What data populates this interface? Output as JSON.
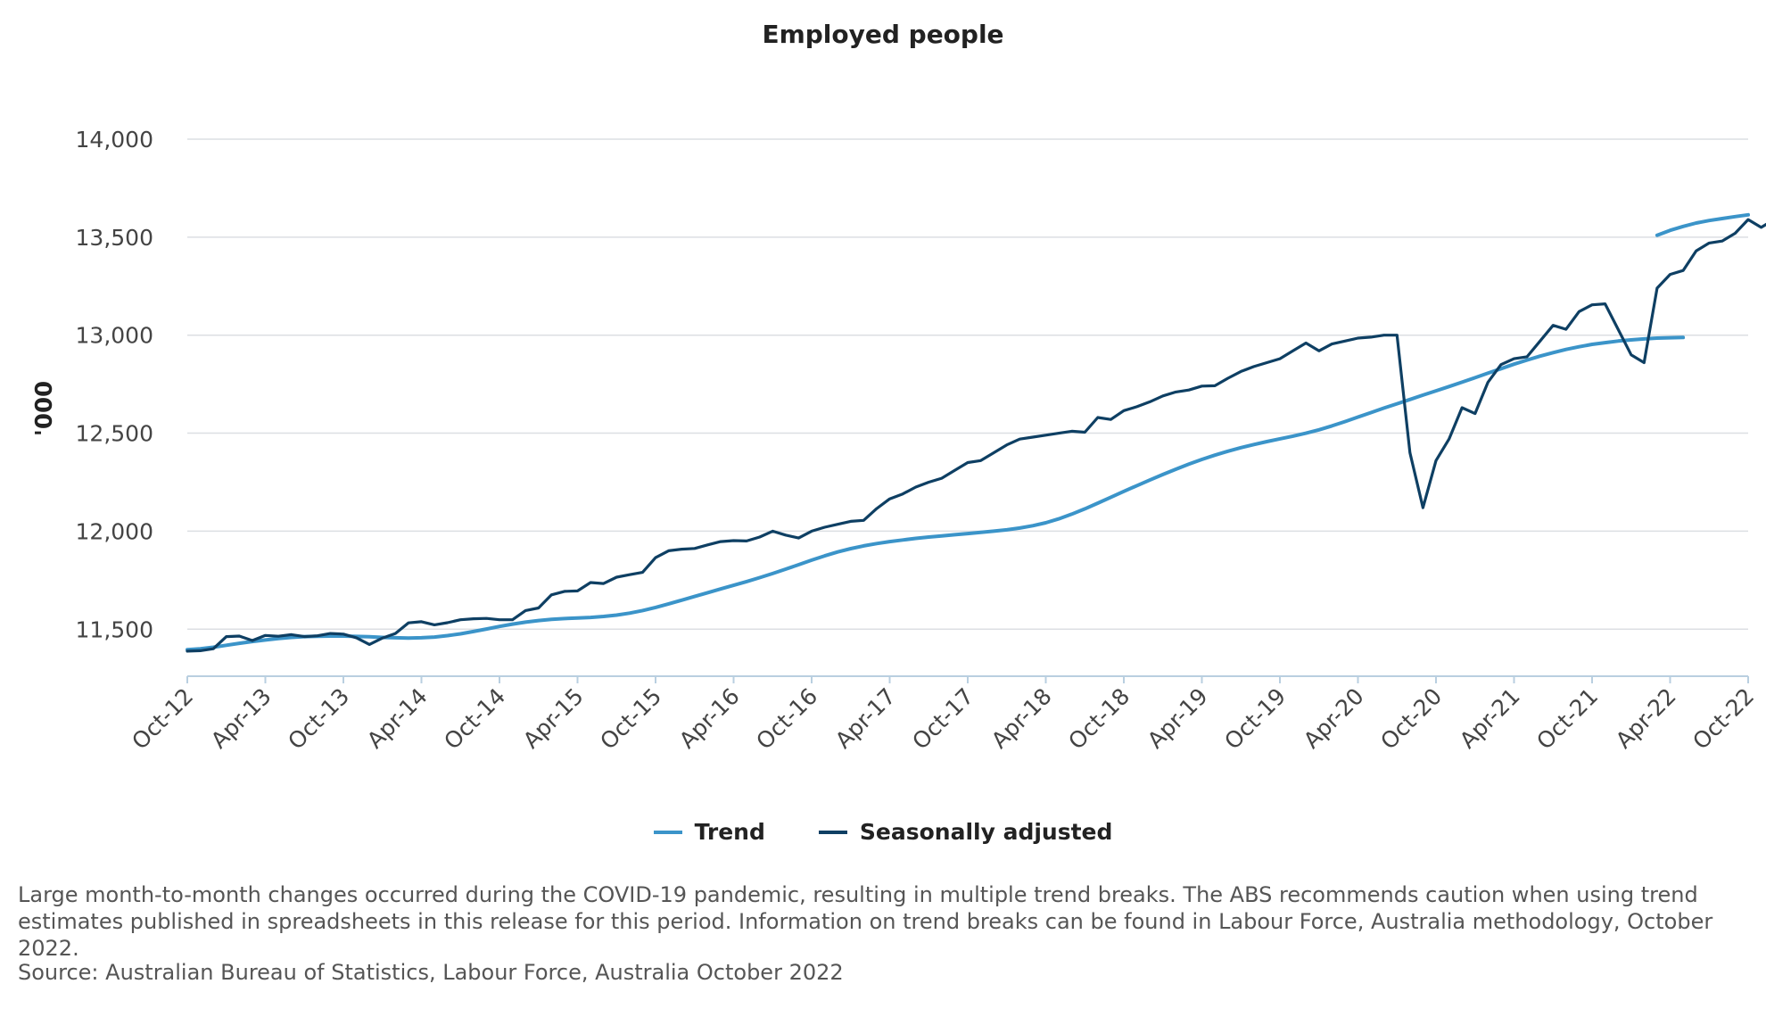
{
  "chart_data": {
    "type": "line",
    "title": "Employed people",
    "ylabel": "'000",
    "xlabel": "",
    "ylim": [
      11260,
      14000
    ],
    "yticks": [
      11500,
      12000,
      12500,
      13000,
      13500,
      14000
    ],
    "ytick_labels": [
      "11,500",
      "12,000",
      "12,500",
      "13,000",
      "13,500",
      "14,000"
    ],
    "x_start": "Oct-12",
    "x_end": "Oct-22",
    "xtick_labels": [
      "Oct-12",
      "Apr-13",
      "Oct-13",
      "Apr-14",
      "Oct-14",
      "Apr-15",
      "Oct-15",
      "Apr-16",
      "Oct-16",
      "Apr-17",
      "Oct-17",
      "Apr-18",
      "Oct-18",
      "Apr-19",
      "Oct-19",
      "Apr-20",
      "Oct-20",
      "Apr-21",
      "Oct-21",
      "Apr-22",
      "Oct-22"
    ],
    "grid": true,
    "legend_position": "bottom",
    "series": [
      {
        "name": "Trend",
        "color": "#3b94c9",
        "segments": [
          {
            "start": "Oct-12",
            "values": [
              11395,
              11400,
              11408,
              11418,
              11428,
              11437,
              11445,
              11452,
              11458,
              11462,
              11464,
              11465,
              11465,
              11463,
              11461,
              11458,
              11456,
              11455,
              11456,
              11460,
              11467,
              11476,
              11488,
              11501,
              11514,
              11526,
              11536,
              11544,
              11550,
              11554,
              11557,
              11560,
              11565,
              11572,
              11582,
              11595,
              11611,
              11629,
              11648,
              11667,
              11686,
              11705,
              11724,
              11743,
              11763,
              11784,
              11806,
              11829,
              11852,
              11874,
              11894,
              11911,
              11925,
              11937,
              11947,
              11955,
              11963,
              11970,
              11976,
              11982,
              11988,
              11994,
              12000,
              12007,
              12016,
              12028,
              12043,
              12063,
              12087,
              12114,
              12143,
              12173,
              12203,
              12232,
              12261,
              12289,
              12316,
              12342,
              12366,
              12388,
              12408,
              12426,
              12442,
              12457,
              12471,
              12485,
              12500,
              12517,
              12537,
              12559,
              12582,
              12605,
              12628,
              12650,
              12672,
              12694,
              12716,
              12738,
              12760,
              12783,
              12806,
              12829,
              12852,
              12873,
              12893,
              12911,
              12927,
              12941,
              12953,
              12962,
              12970,
              12976,
              12981,
              12985,
              12987,
              12988
            ]
          },
          {
            "start": "Mar-22",
            "values": [
              13510,
              13535,
              13555,
              13572,
              13585,
              13595,
              13605,
              13614
            ]
          }
        ]
      },
      {
        "name": "Seasonally adjusted",
        "color": "#0e3f63",
        "segments": [
          {
            "start": "Oct-12",
            "values": [
              11388,
              11390,
              11400,
              11462,
              11465,
              11442,
              11468,
              11464,
              11472,
              11462,
              11466,
              11478,
              11475,
              11456,
              11422,
              11455,
              11478,
              11532,
              11538,
              11522,
              11533,
              11548,
              11553,
              11555,
              11548,
              11548,
              11595,
              11608,
              11675,
              11693,
              11695,
              11738,
              11733,
              11765,
              11778,
              11790,
              11865,
              11900,
              11908,
              11912,
              11930,
              11947,
              11952,
              11950,
              11970,
              12000,
              11980,
              11965,
              12000,
              12020,
              12035,
              12050,
              12055,
              12115,
              12165,
              12190,
              12225,
              12250,
              12270,
              12310,
              12350,
              12360,
              12400,
              12440,
              12470,
              12480,
              12490,
              12500,
              12510,
              12505,
              12580,
              12570,
              12615,
              12635,
              12660,
              12690,
              12710,
              12720,
              12740,
              12742,
              12780,
              12815,
              12840,
              12860,
              12880,
              12920,
              12960,
              12920,
              12955,
              12970,
              12985,
              12990,
              13000,
              13000,
              12400,
              12120,
              12360,
              12470,
              12630,
              12600,
              12760,
              12850,
              12880,
              12890,
              12970,
              13050,
              13030,
              13120,
              13155,
              13160,
              13030,
              12900,
              12860,
              13240,
              13310,
              13330,
              13430,
              13470,
              13480,
              13520,
              13590,
              13550,
              13590,
              13580,
              13620
            ]
          }
        ]
      }
    ]
  },
  "legend": {
    "trend_label": "Trend",
    "sa_label": "Seasonally adjusted"
  },
  "note": "Large month-to-month changes occurred during the COVID-19 pandemic, resulting in multiple trend breaks. The ABS recommends caution when using trend estimates published in spreadsheets in this release for this period. Information on trend breaks can be found in Labour Force, Australia methodology, October 2022.",
  "source": "Source: Australian Bureau of Statistics, Labour Force, Australia October 2022"
}
